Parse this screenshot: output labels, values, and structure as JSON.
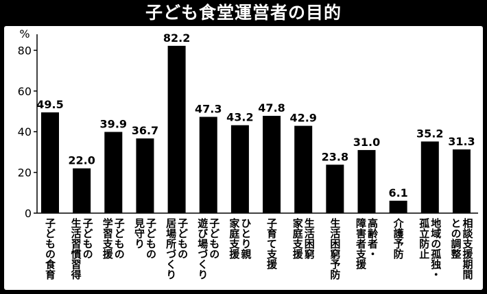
{
  "title": "子ども食堂運営者の目的",
  "chart_data": {
    "type": "bar",
    "title": "子ども食堂運営者の目的",
    "ylabel": "%",
    "ylim": [
      0,
      85
    ],
    "yticks": [
      0,
      20,
      40,
      60,
      80
    ],
    "grid": false,
    "categories": [
      [
        "子どもの食育"
      ],
      [
        "子どもの",
        "生活習慣習得"
      ],
      [
        "子どもの",
        "学習支援"
      ],
      [
        "子どもの",
        "見守り"
      ],
      [
        "子どもの",
        "居場所づくり"
      ],
      [
        "子どもの",
        "遊び場づくり"
      ],
      [
        "ひとり親",
        "家庭支援"
      ],
      [
        "子育て支援"
      ],
      [
        "生活困窮",
        "家庭支援"
      ],
      [
        "生活困窮予防"
      ],
      [
        "高齢者・",
        "障害者支援"
      ],
      [
        "介護予防"
      ],
      [
        "地域の孤独・",
        "孤立防止"
      ],
      [
        "相談支援期間",
        "との調整"
      ]
    ],
    "values": [
      49.5,
      22.0,
      39.9,
      36.7,
      82.2,
      47.3,
      43.2,
      47.8,
      42.9,
      23.8,
      31.0,
      6.1,
      35.2,
      31.3
    ],
    "value_labels": [
      "49.5",
      "22.0",
      "39.9",
      "36.7",
      "82.2",
      "47.3",
      "43.2",
      "47.8",
      "42.9",
      "23.8",
      "31.0",
      "6.1",
      "35.2",
      "31.3"
    ],
    "bar_color": "#000000"
  }
}
